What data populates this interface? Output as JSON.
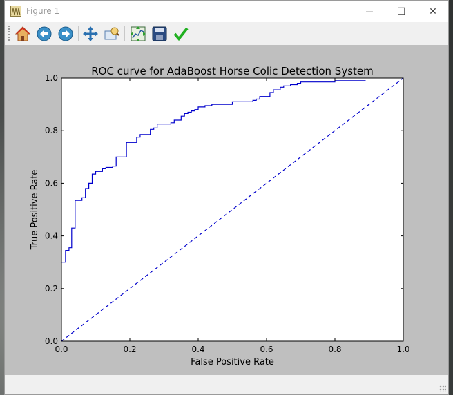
{
  "window": {
    "title": "Figure 1",
    "controls": {
      "minimize": "—",
      "maximize": "☐",
      "close": "✕"
    }
  },
  "toolbar": {
    "items": [
      {
        "name": "home-icon"
      },
      {
        "name": "back-arrow-icon"
      },
      {
        "name": "forward-arrow-icon"
      },
      {
        "name": "pan-move-icon"
      },
      {
        "name": "zoom-to-rect-icon"
      },
      {
        "name": "configure-subplots-icon"
      },
      {
        "name": "save-figure-icon"
      },
      {
        "name": "edit-checkmark-icon"
      }
    ]
  },
  "chart_data": {
    "type": "line",
    "title": "ROC curve for AdaBoost Horse Colic Detection System",
    "xlabel": "False Positive Rate",
    "ylabel": "True Positive Rate",
    "xlim": [
      0,
      1
    ],
    "ylim": [
      0,
      1
    ],
    "xticks": [
      "0.0",
      "0.2",
      "0.4",
      "0.6",
      "0.8",
      "1.0"
    ],
    "yticks": [
      "0.0",
      "0.2",
      "0.4",
      "0.6",
      "0.8",
      "1.0"
    ],
    "grid": false,
    "series": [
      {
        "style": "solid",
        "color": "#0000cc",
        "x": [
          0,
          0.012,
          0.012,
          0.022,
          0.022,
          0.03,
          0.03,
          0.04,
          0.04,
          0.06,
          0.06,
          0.07,
          0.07,
          0.08,
          0.08,
          0.09,
          0.09,
          0.1,
          0.1,
          0.12,
          0.12,
          0.13,
          0.13,
          0.15,
          0.15,
          0.16,
          0.16,
          0.19,
          0.19,
          0.22,
          0.22,
          0.23,
          0.23,
          0.26,
          0.26,
          0.27,
          0.27,
          0.28,
          0.28,
          0.32,
          0.32,
          0.33,
          0.33,
          0.35,
          0.35,
          0.36,
          0.36,
          0.37,
          0.37,
          0.38,
          0.38,
          0.39,
          0.39,
          0.4,
          0.4,
          0.42,
          0.42,
          0.44,
          0.44,
          0.5,
          0.5,
          0.56,
          0.56,
          0.57,
          0.57,
          0.58,
          0.58,
          0.61,
          0.61,
          0.62,
          0.62,
          0.64,
          0.64,
          0.65,
          0.65,
          0.67,
          0.67,
          0.69,
          0.69,
          0.7,
          0.7,
          0.8,
          0.8,
          0.89
        ],
        "y": [
          0.3,
          0.3,
          0.345,
          0.345,
          0.355,
          0.355,
          0.43,
          0.43,
          0.535,
          0.535,
          0.545,
          0.545,
          0.58,
          0.58,
          0.6,
          0.6,
          0.635,
          0.635,
          0.645,
          0.645,
          0.655,
          0.655,
          0.66,
          0.66,
          0.665,
          0.665,
          0.7,
          0.7,
          0.755,
          0.755,
          0.775,
          0.775,
          0.785,
          0.785,
          0.805,
          0.805,
          0.81,
          0.81,
          0.825,
          0.825,
          0.83,
          0.83,
          0.84,
          0.84,
          0.855,
          0.855,
          0.865,
          0.865,
          0.87,
          0.87,
          0.875,
          0.875,
          0.88,
          0.88,
          0.89,
          0.89,
          0.895,
          0.895,
          0.9,
          0.9,
          0.91,
          0.91,
          0.915,
          0.915,
          0.92,
          0.92,
          0.93,
          0.93,
          0.945,
          0.945,
          0.955,
          0.955,
          0.965,
          0.965,
          0.97,
          0.97,
          0.975,
          0.975,
          0.98,
          0.98,
          0.985,
          0.985,
          0.99,
          0.99
        ]
      },
      {
        "style": "dashed",
        "color": "#0000cc",
        "x": [
          0,
          1
        ],
        "y": [
          0,
          1
        ]
      }
    ]
  }
}
